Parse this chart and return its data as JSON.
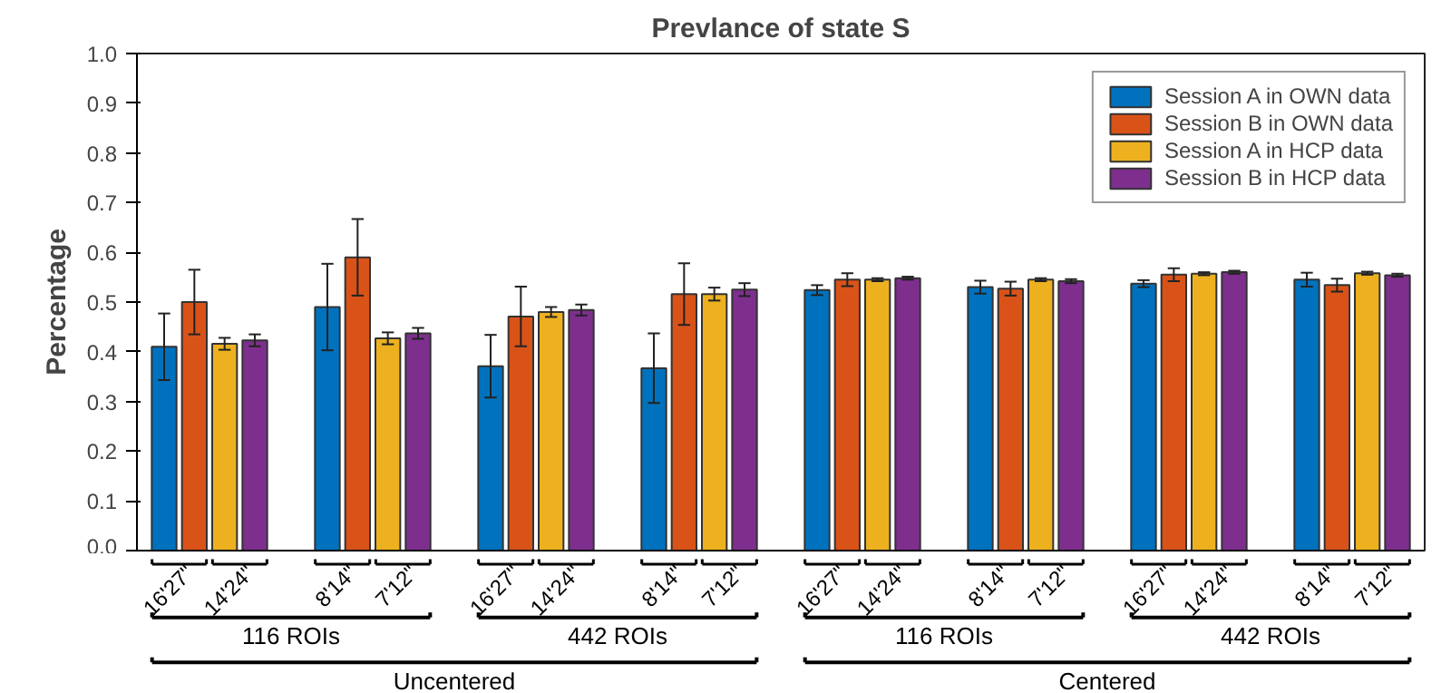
{
  "chart_data": {
    "type": "bar",
    "title": "Prevlance of state S",
    "ylabel": "Percentage",
    "categories": [
      "16'27\"",
      "14'24\"",
      "8'14\"",
      "7'12\"",
      "16'27\"",
      "14'24\"",
      "8'14\"",
      "7'12\"",
      "16'27\"",
      "14'24\"",
      "8'14\"",
      "7'12\"",
      "16'27\"",
      "14'24\"",
      "8'14\"",
      "7'12\""
    ],
    "series": [
      {
        "name": "Session A in OWN data",
        "color": "#0072bd",
        "values": [
          0.41,
          null,
          0.49,
          null,
          0.371,
          null,
          0.367,
          null,
          0.524,
          null,
          0.53,
          null,
          0.537,
          null,
          0.545,
          null
        ],
        "errors": [
          0.067,
          null,
          0.087,
          null,
          0.063,
          null,
          0.07,
          null,
          0.01,
          null,
          0.013,
          null,
          0.007,
          null,
          0.014,
          null
        ]
      },
      {
        "name": "Session B in OWN data",
        "color": "#d95319",
        "values": [
          0.5,
          null,
          0.59,
          null,
          0.471,
          null,
          0.516,
          null,
          0.545,
          null,
          0.527,
          null,
          0.555,
          null,
          0.534,
          null
        ],
        "errors": [
          0.065,
          null,
          0.077,
          null,
          0.06,
          null,
          0.062,
          null,
          0.013,
          null,
          0.014,
          null,
          0.013,
          null,
          0.013,
          null
        ]
      },
      {
        "name": "Session A in HCP data",
        "color": "#edb120",
        "values": [
          null,
          0.416,
          null,
          0.427,
          null,
          0.48,
          null,
          0.516,
          null,
          0.545,
          null,
          0.545,
          null,
          0.557,
          null,
          0.558
        ],
        "errors": [
          null,
          0.012,
          null,
          0.012,
          null,
          0.01,
          null,
          0.013,
          null,
          0.003,
          null,
          0.003,
          null,
          0.003,
          null,
          0.003
        ]
      },
      {
        "name": "Session B in HCP data",
        "color": "#7e2f8e",
        "values": [
          null,
          0.423,
          null,
          0.437,
          null,
          0.484,
          null,
          0.525,
          null,
          0.548,
          null,
          0.542,
          null,
          0.56,
          null,
          0.554
        ],
        "errors": [
          null,
          0.012,
          null,
          0.011,
          null,
          0.011,
          null,
          0.013,
          null,
          0.003,
          null,
          0.004,
          null,
          0.003,
          null,
          0.003
        ]
      }
    ],
    "ylim": [
      0,
      1
    ],
    "yticks": [
      {
        "value": 0,
        "label": "0.0"
      },
      0.1,
      0.2,
      0.3,
      0.4,
      0.5,
      0.6,
      0.7,
      0.8,
      0.9,
      {
        "value": 1,
        "label": "1.0"
      }
    ],
    "legend": "top right",
    "annotations": [
      "116 ROIs",
      "442 ROIs",
      "116 ROIs",
      "442 ROIs",
      "Uncentered",
      "Centered"
    ]
  }
}
